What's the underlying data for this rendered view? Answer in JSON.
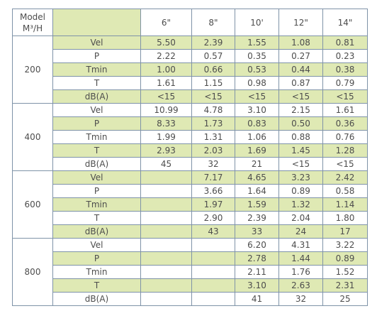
{
  "header": {
    "model": "Model",
    "unit": "M³/H",
    "columns": [
      "6\"",
      "8\"",
      "10'",
      "12\"",
      "14\""
    ]
  },
  "groups": [
    {
      "model": "200",
      "rows": [
        {
          "label": "Vel",
          "values": [
            "5.50",
            "2.39",
            "1.55",
            "1.08",
            "0.81"
          ]
        },
        {
          "label": "P",
          "values": [
            "2.22",
            "0.57",
            "0.35",
            "0.27",
            "0.23"
          ]
        },
        {
          "label": "Tmin",
          "values": [
            "1.00",
            "0.66",
            "0.53",
            "0.44",
            "0.38"
          ]
        },
        {
          "label": "T",
          "values": [
            "1.61",
            "1.15",
            "0.98",
            "0.87",
            "0.79"
          ]
        },
        {
          "label": "dB(A)",
          "values": [
            "<15",
            "<15",
            "<15",
            "<15",
            "<15"
          ]
        }
      ]
    },
    {
      "model": "400",
      "rows": [
        {
          "label": "Vel",
          "values": [
            "10.99",
            "4.78",
            "3.10",
            "2.15",
            "1.61"
          ]
        },
        {
          "label": "P",
          "values": [
            "8.33",
            "1.73",
            "0.83",
            "0.50",
            "0.36"
          ]
        },
        {
          "label": "Tmin",
          "values": [
            "1.99",
            "1.31",
            "1.06",
            "0.88",
            "0.76"
          ]
        },
        {
          "label": "T",
          "values": [
            "2.93",
            "2.03",
            "1.69",
            "1.45",
            "1.28"
          ]
        },
        {
          "label": "dB(A)",
          "values": [
            "45",
            "32",
            "21",
            "<15",
            "<15"
          ]
        }
      ]
    },
    {
      "model": "600",
      "rows": [
        {
          "label": "Vel",
          "values": [
            null,
            "7.17",
            "4.65",
            "3.23",
            "2.42"
          ]
        },
        {
          "label": "P",
          "values": [
            null,
            "3.66",
            "1.64",
            "0.89",
            "0.58"
          ]
        },
        {
          "label": "Tmin",
          "values": [
            null,
            "1.97",
            "1.59",
            "1.32",
            "1.14"
          ]
        },
        {
          "label": "T",
          "values": [
            null,
            "2.90",
            "2.39",
            "2.04",
            "1.80"
          ]
        },
        {
          "label": "dB(A)",
          "values": [
            null,
            "43",
            "33",
            "24",
            "17"
          ]
        }
      ]
    },
    {
      "model": "800",
      "rows": [
        {
          "label": "Vel",
          "values": [
            null,
            null,
            "6.20",
            "4.31",
            "3.22"
          ]
        },
        {
          "label": "P",
          "values": [
            null,
            null,
            "2.78",
            "1.44",
            "0.89"
          ]
        },
        {
          "label": "Tmin",
          "values": [
            null,
            null,
            "2.11",
            "1.76",
            "1.52"
          ]
        },
        {
          "label": "T",
          "values": [
            null,
            null,
            "3.10",
            "2.63",
            "2.31"
          ]
        },
        {
          "label": "dB(A)",
          "values": [
            null,
            null,
            "41",
            "32",
            "25"
          ]
        }
      ]
    }
  ]
}
